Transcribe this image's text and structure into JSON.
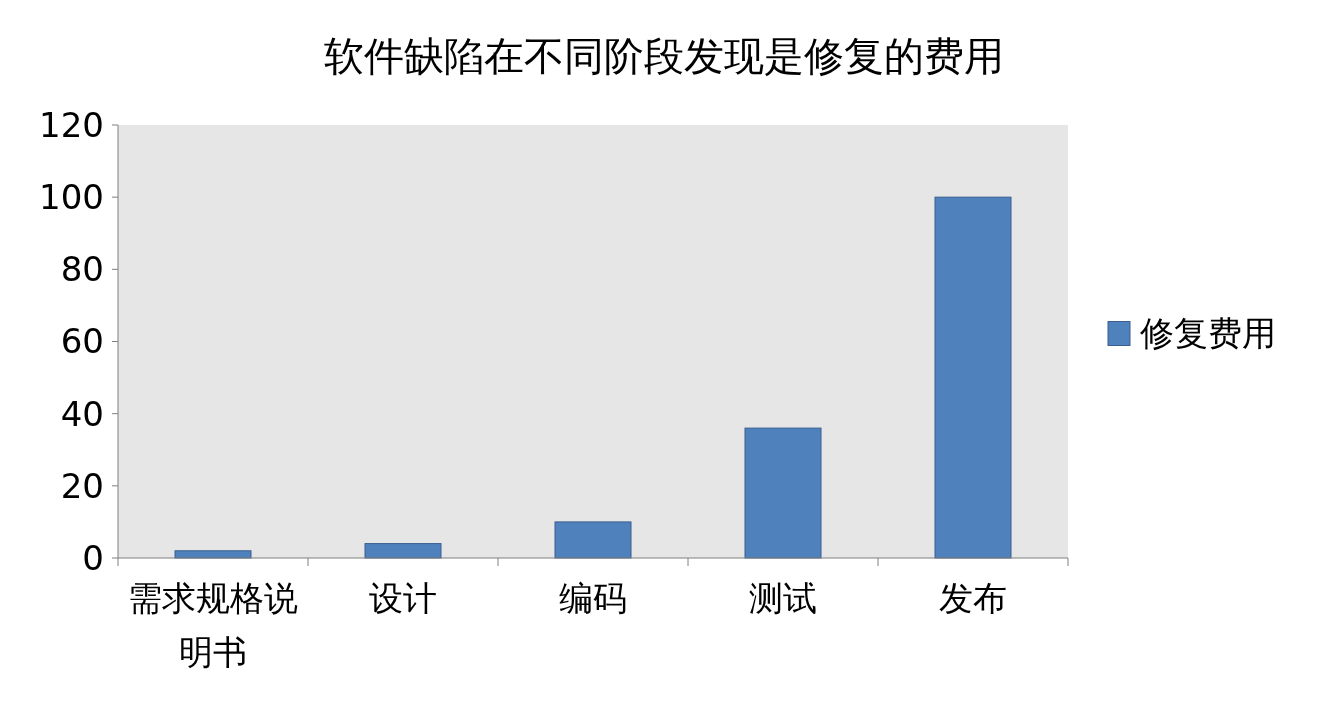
{
  "chart_data": {
    "type": "bar",
    "title": "软件缺陷在不同阶段发现是修复的费用",
    "categories": [
      "需求规格说明书",
      "设计",
      "编码",
      "测试",
      "发布"
    ],
    "series": [
      {
        "name": "修复费用",
        "color": "#4f81bd",
        "values": [
          2,
          4,
          10,
          36,
          100
        ]
      }
    ],
    "ylim": [
      0,
      120
    ],
    "yticks": [
      0,
      20,
      40,
      60,
      80,
      100,
      120
    ],
    "grid": false,
    "legend": "right"
  }
}
